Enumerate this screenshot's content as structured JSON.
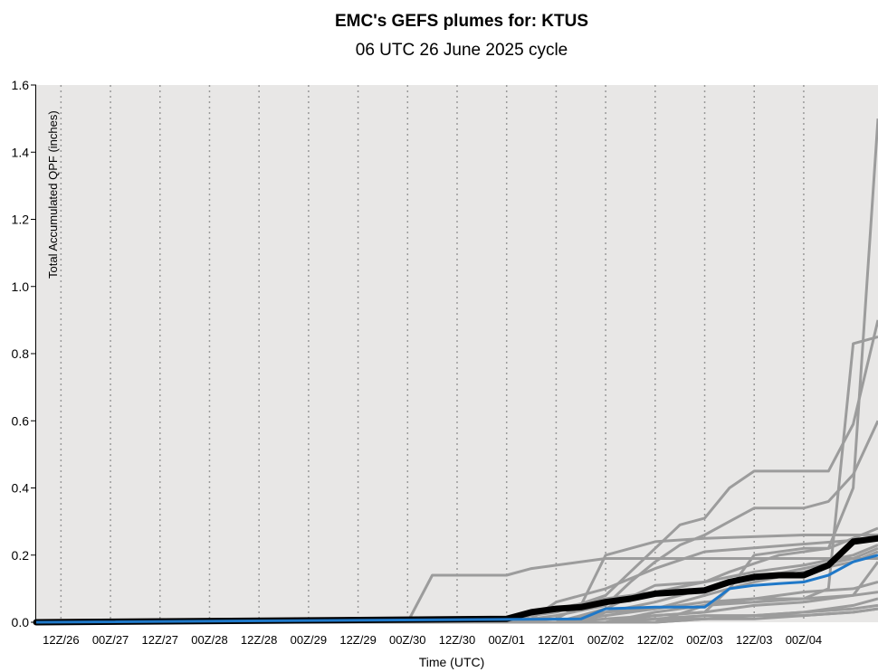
{
  "chart_data": {
    "type": "line",
    "title": "EMC's GEFS plumes for: KTUS",
    "subtitle": "06 UTC 26 June 2025 cycle",
    "xlabel": "Time (UTC)",
    "ylabel": "Total Accumulated QPF (inches)",
    "ylim": [
      0,
      1.6
    ],
    "yticks": [
      "0.0",
      "0.2",
      "0.4",
      "0.6",
      "0.8",
      "1.0",
      "1.2",
      "1.4",
      "1.6"
    ],
    "x_range_hours": [
      0,
      204
    ],
    "xticks": [
      {
        "label": "12Z/26",
        "hour": 6
      },
      {
        "label": "00Z/27",
        "hour": 18
      },
      {
        "label": "12Z/27",
        "hour": 30
      },
      {
        "label": "00Z/28",
        "hour": 42
      },
      {
        "label": "12Z/28",
        "hour": 54
      },
      {
        "label": "00Z/29",
        "hour": 66
      },
      {
        "label": "12Z/29",
        "hour": 78
      },
      {
        "label": "00Z/30",
        "hour": 90
      },
      {
        "label": "12Z/30",
        "hour": 102
      },
      {
        "label": "00Z/01",
        "hour": 114
      },
      {
        "label": "12Z/01",
        "hour": 126
      },
      {
        "label": "00Z/02",
        "hour": 138
      },
      {
        "label": "12Z/02",
        "hour": 150
      },
      {
        "label": "00Z/03",
        "hour": 162
      },
      {
        "label": "12Z/03",
        "hour": 174
      },
      {
        "label": "00Z/04",
        "hour": 186
      }
    ],
    "grid": "vertical dotted",
    "colors": {
      "background": "#e8e7e6",
      "members": "#9c9c9c",
      "mean": "#000000",
      "control": "#1f78c8"
    },
    "members": [
      {
        "x": [
          0,
          90,
          96,
          102,
          114,
          120,
          138,
          210
        ],
        "y": [
          0,
          0,
          0.14,
          0.14,
          0.14,
          0.16,
          0.19,
          0.19
        ]
      },
      {
        "x": [
          0,
          114,
          120,
          126,
          138,
          150,
          162,
          210
        ],
        "y": [
          0,
          0,
          0.01,
          0.06,
          0.1,
          0.16,
          0.21,
          0.25
        ]
      },
      {
        "x": [
          0,
          102,
          114,
          126,
          138,
          150,
          156,
          162,
          168,
          174,
          186,
          192,
          198,
          210
        ],
        "y": [
          0,
          0,
          0.01,
          0.03,
          0.08,
          0.22,
          0.29,
          0.31,
          0.4,
          0.45,
          0.45,
          0.45,
          0.59,
          0.9
        ]
      },
      {
        "x": [
          0,
          114,
          126,
          138,
          144,
          150,
          156,
          162,
          168,
          174,
          180,
          186,
          192,
          198,
          210
        ],
        "y": [
          0,
          0,
          0.02,
          0.05,
          0.12,
          0.18,
          0.23,
          0.26,
          0.3,
          0.34,
          0.34,
          0.34,
          0.36,
          0.44,
          0.6
        ]
      },
      {
        "x": [
          0,
          126,
          138,
          150,
          162,
          168,
          174,
          186,
          192,
          198,
          210
        ],
        "y": [
          0,
          0,
          0.01,
          0.02,
          0.03,
          0.1,
          0.2,
          0.22,
          0.22,
          0.4,
          1.5
        ]
      },
      {
        "x": [
          0,
          132,
          138,
          150,
          162,
          174,
          186,
          192,
          198,
          210
        ],
        "y": [
          0,
          0,
          0.03,
          0.04,
          0.06,
          0.07,
          0.07,
          0.1,
          0.83,
          0.85
        ]
      },
      {
        "x": [
          0,
          114,
          126,
          132,
          138,
          150,
          162,
          186,
          198,
          210
        ],
        "y": [
          0,
          0,
          0.01,
          0.05,
          0.2,
          0.24,
          0.25,
          0.26,
          0.26,
          0.26
        ]
      },
      {
        "x": [
          0,
          126,
          138,
          150,
          162,
          168,
          180,
          192,
          210
        ],
        "y": [
          0,
          0,
          0.04,
          0.11,
          0.12,
          0.15,
          0.2,
          0.22,
          0.28
        ]
      },
      {
        "x": [
          0,
          138,
          150,
          162,
          174,
          186,
          198,
          210
        ],
        "y": [
          0,
          0,
          0.02,
          0.03,
          0.05,
          0.06,
          0.08,
          0.18
        ]
      },
      {
        "x": [
          0,
          138,
          150,
          162,
          174,
          186,
          198,
          210
        ],
        "y": [
          0,
          0,
          0.01,
          0.02,
          0.02,
          0.03,
          0.04,
          0.05
        ]
      },
      {
        "x": [
          0,
          114,
          126,
          138,
          150,
          162,
          174,
          186,
          198,
          210
        ],
        "y": [
          0,
          0,
          0.04,
          0.07,
          0.09,
          0.12,
          0.15,
          0.17,
          0.2,
          0.23
        ]
      },
      {
        "x": [
          0,
          138,
          150,
          162,
          174,
          186,
          198,
          210
        ],
        "y": [
          0,
          0,
          0.03,
          0.05,
          0.07,
          0.09,
          0.1,
          0.12
        ]
      },
      {
        "x": [
          0,
          150,
          162,
          174,
          186,
          198,
          210
        ],
        "y": [
          0,
          0,
          0.01,
          0.02,
          0.03,
          0.05,
          0.07
        ]
      },
      {
        "x": [
          0,
          126,
          138,
          150,
          162,
          174,
          186,
          198,
          210
        ],
        "y": [
          0,
          0,
          0.02,
          0.04,
          0.08,
          0.12,
          0.15,
          0.18,
          0.21
        ]
      },
      {
        "x": [
          0,
          138,
          150,
          162,
          174,
          186,
          198,
          210
        ],
        "y": [
          0,
          0,
          0.0,
          0.01,
          0.01,
          0.02,
          0.03,
          0.04
        ]
      },
      {
        "x": [
          0,
          150,
          162,
          174,
          186,
          198,
          210
        ],
        "y": [
          0,
          0,
          0.05,
          0.06,
          0.07,
          0.08,
          0.09
        ]
      },
      {
        "x": [
          0,
          126,
          138,
          150,
          162,
          174,
          186,
          198,
          210
        ],
        "y": [
          0,
          0,
          0.03,
          0.06,
          0.1,
          0.13,
          0.16,
          0.19,
          0.22
        ]
      },
      {
        "x": [
          0,
          138,
          150,
          162,
          174,
          186,
          198,
          210
        ],
        "y": [
          0,
          0,
          0.01,
          0.01,
          0.02,
          0.02,
          0.03,
          0.04
        ]
      }
    ],
    "mean": {
      "x": [
        0,
        114,
        120,
        126,
        132,
        138,
        144,
        150,
        156,
        162,
        168,
        174,
        180,
        186,
        192,
        198,
        204
      ],
      "y": [
        0,
        0.01,
        0.03,
        0.04,
        0.045,
        0.06,
        0.07,
        0.085,
        0.09,
        0.095,
        0.12,
        0.135,
        0.14,
        0.14,
        0.17,
        0.24,
        0.25
      ]
    },
    "control": {
      "x": [
        0,
        132,
        138,
        150,
        156,
        162,
        168,
        174,
        180,
        186,
        192,
        198,
        204
      ],
      "y": [
        0,
        0.01,
        0.04,
        0.045,
        0.045,
        0.045,
        0.1,
        0.11,
        0.115,
        0.12,
        0.14,
        0.18,
        0.2
      ]
    }
  }
}
